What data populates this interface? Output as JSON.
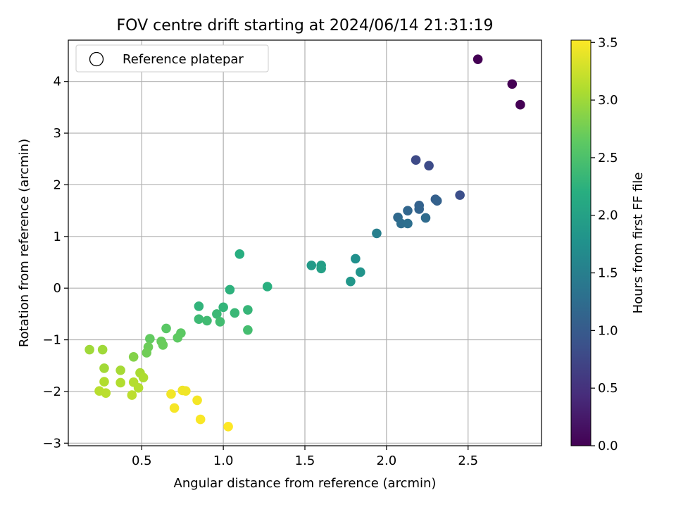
{
  "chart_data": {
    "type": "scatter",
    "title": "FOV centre drift starting at 2024/06/14 21:31:19",
    "xlabel": "Angular distance from reference (arcmin)",
    "ylabel": "Rotation from reference (arcmin)",
    "xlim": [
      0.05,
      2.95
    ],
    "ylim": [
      -3.05,
      4.8
    ],
    "xticks": [
      0.5,
      1.0,
      1.5,
      2.0,
      2.5
    ],
    "xtick_labels": [
      "0.5",
      "1.0",
      "1.5",
      "2.0",
      "2.5"
    ],
    "yticks": [
      -3,
      -2,
      -1,
      0,
      1,
      2,
      3,
      4
    ],
    "ytick_labels": [
      "−3",
      "−2",
      "−1",
      "0",
      "1",
      "2",
      "3",
      "4"
    ],
    "grid": true,
    "legend": {
      "position": "upper-left",
      "entries": [
        "Reference platepar"
      ]
    },
    "colorbar": {
      "label": "Hours from first FF file",
      "range": [
        0.0,
        3.52
      ],
      "colormap": "viridis",
      "ticks": [
        0.0,
        0.5,
        1.0,
        1.5,
        2.0,
        2.5,
        3.0,
        3.5
      ],
      "tick_labels": [
        "0.0",
        "0.5",
        "1.0",
        "1.5",
        "2.0",
        "2.5",
        "3.0",
        "3.5"
      ]
    },
    "points": [
      {
        "x": 2.56,
        "y": 4.43,
        "c": 0.0
      },
      {
        "x": 2.77,
        "y": 3.95,
        "c": 0.0
      },
      {
        "x": 2.82,
        "y": 3.55,
        "c": 0.0
      },
      {
        "x": 2.18,
        "y": 2.48,
        "c": 0.78
      },
      {
        "x": 2.26,
        "y": 2.37,
        "c": 0.8
      },
      {
        "x": 2.45,
        "y": 1.8,
        "c": 0.85
      },
      {
        "x": 2.3,
        "y": 1.72,
        "c": 1.05
      },
      {
        "x": 2.31,
        "y": 1.69,
        "c": 1.08
      },
      {
        "x": 2.2,
        "y": 1.6,
        "c": 1.1
      },
      {
        "x": 2.2,
        "y": 1.53,
        "c": 1.12
      },
      {
        "x": 2.13,
        "y": 1.5,
        "c": 1.15
      },
      {
        "x": 2.07,
        "y": 1.37,
        "c": 1.2
      },
      {
        "x": 2.24,
        "y": 1.36,
        "c": 1.22
      },
      {
        "x": 2.09,
        "y": 1.25,
        "c": 1.25
      },
      {
        "x": 2.13,
        "y": 1.25,
        "c": 1.28
      },
      {
        "x": 1.94,
        "y": 1.06,
        "c": 1.5
      },
      {
        "x": 1.81,
        "y": 0.57,
        "c": 1.75
      },
      {
        "x": 1.84,
        "y": 0.31,
        "c": 1.8
      },
      {
        "x": 1.78,
        "y": 0.13,
        "c": 1.85
      },
      {
        "x": 1.54,
        "y": 0.44,
        "c": 1.9
      },
      {
        "x": 1.6,
        "y": 0.44,
        "c": 1.95
      },
      {
        "x": 1.6,
        "y": 0.38,
        "c": 1.98
      },
      {
        "x": 1.1,
        "y": 0.66,
        "c": 2.2
      },
      {
        "x": 1.27,
        "y": 0.03,
        "c": 2.22
      },
      {
        "x": 1.04,
        "y": -0.03,
        "c": 2.25
      },
      {
        "x": 0.85,
        "y": -0.35,
        "c": 2.28
      },
      {
        "x": 1.0,
        "y": -0.37,
        "c": 2.3
      },
      {
        "x": 1.15,
        "y": -0.42,
        "c": 2.32
      },
      {
        "x": 1.07,
        "y": -0.48,
        "c": 2.35
      },
      {
        "x": 0.96,
        "y": -0.5,
        "c": 2.36
      },
      {
        "x": 0.85,
        "y": -0.6,
        "c": 2.38
      },
      {
        "x": 0.9,
        "y": -0.63,
        "c": 2.4
      },
      {
        "x": 0.98,
        "y": -0.65,
        "c": 2.42
      },
      {
        "x": 1.15,
        "y": -0.81,
        "c": 2.44
      },
      {
        "x": 0.65,
        "y": -0.78,
        "c": 2.6
      },
      {
        "x": 0.74,
        "y": -0.87,
        "c": 2.62
      },
      {
        "x": 0.72,
        "y": -0.96,
        "c": 2.64
      },
      {
        "x": 0.55,
        "y": -0.98,
        "c": 2.66
      },
      {
        "x": 0.62,
        "y": -1.03,
        "c": 2.68
      },
      {
        "x": 0.63,
        "y": -1.1,
        "c": 2.7
      },
      {
        "x": 0.54,
        "y": -1.14,
        "c": 2.72
      },
      {
        "x": 0.53,
        "y": -1.25,
        "c": 2.74
      },
      {
        "x": 0.45,
        "y": -1.33,
        "c": 2.85
      },
      {
        "x": 0.18,
        "y": -1.19,
        "c": 3.0
      },
      {
        "x": 0.26,
        "y": -1.19,
        "c": 3.0
      },
      {
        "x": 0.27,
        "y": -1.55,
        "c": 3.02
      },
      {
        "x": 0.37,
        "y": -1.59,
        "c": 3.04
      },
      {
        "x": 0.49,
        "y": -1.64,
        "c": 3.06
      },
      {
        "x": 0.51,
        "y": -1.73,
        "c": 3.08
      },
      {
        "x": 0.27,
        "y": -1.81,
        "c": 3.1
      },
      {
        "x": 0.37,
        "y": -1.83,
        "c": 3.1
      },
      {
        "x": 0.45,
        "y": -1.82,
        "c": 3.12
      },
      {
        "x": 0.48,
        "y": -1.93,
        "c": 3.12
      },
      {
        "x": 0.24,
        "y": -1.99,
        "c": 3.14
      },
      {
        "x": 0.28,
        "y": -2.03,
        "c": 3.15
      },
      {
        "x": 0.44,
        "y": -2.07,
        "c": 3.16
      },
      {
        "x": 0.75,
        "y": -1.98,
        "c": 3.45
      },
      {
        "x": 0.77,
        "y": -1.99,
        "c": 3.45
      },
      {
        "x": 0.68,
        "y": -2.05,
        "c": 3.46
      },
      {
        "x": 0.84,
        "y": -2.17,
        "c": 3.47
      },
      {
        "x": 0.7,
        "y": -2.32,
        "c": 3.48
      },
      {
        "x": 0.86,
        "y": -2.54,
        "c": 3.5
      },
      {
        "x": 1.03,
        "y": -2.68,
        "c": 3.52
      }
    ]
  }
}
